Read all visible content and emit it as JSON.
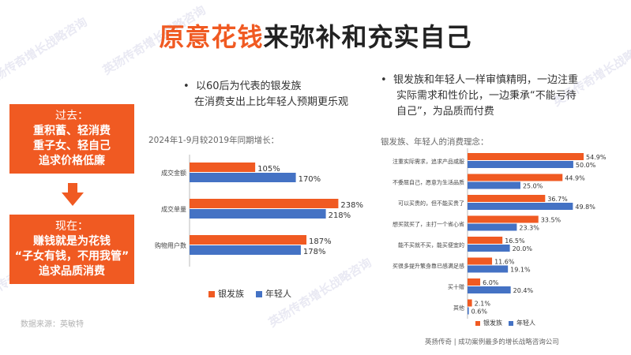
{
  "title_highlight": "原意花钱",
  "title_rest": "来弥补和充实自己",
  "left_bullet": [
    "以60后为代表的银发族",
    "在消费支出上比年轻人预期更乐观"
  ],
  "right_bullet": [
    "银发族和年轻人一样审慎精明，一边注重",
    "实际需求和性价比，一边秉承“不能亏待",
    "自己”，为品质而付费"
  ],
  "past_box": {
    "head": "过去：",
    "lines": [
      "重积蓄、轻消费",
      "重子女、轻自己",
      "追求价格低廉"
    ]
  },
  "now_box": {
    "head": "现在：",
    "lines": [
      "赚钱就是为花钱",
      "“子女有钱，不用我管”",
      "追求品质消费"
    ]
  },
  "source": "数据来源：英敏特",
  "footer": "英扬传奇 | 成功案例最多的增长战略咨询公司",
  "watermark": "英扬传奇增长战略咨询",
  "colors": {
    "accent": "#f05a22",
    "silver": "#f05a22",
    "young": "#4472c4"
  },
  "chart_data": [
    {
      "type": "bar",
      "orientation": "horizontal",
      "title": "2024年1-9月较2019年同期增长：",
      "categories": [
        "成交金额",
        "成交单量",
        "购物用户数"
      ],
      "series": [
        {
          "name": "银发族",
          "values": [
            105,
            238,
            187
          ],
          "labels": [
            "105%",
            "238%",
            "187%"
          ]
        },
        {
          "name": "年轻人",
          "values": [
            170,
            218,
            178
          ],
          "labels": [
            "170%",
            "218%",
            "178%"
          ]
        }
      ],
      "xlim": [
        0,
        240
      ],
      "grid": false,
      "legend": "bottom"
    },
    {
      "type": "bar",
      "orientation": "horizontal",
      "title": "银发族、年轻人的消费理念：",
      "categories": [
        "注重实际需求，追求产品或服",
        "不委屈自己，愿意为生活品质",
        "可以买贵的，但不能买贵了",
        "想买就买了，主打一个省心省",
        "能不买就不买，能买便宜的",
        "买很多提升繁身靠已感满足感",
        "买十赠",
        "其他"
      ],
      "series": [
        {
          "name": "银发族",
          "values": [
            54.9,
            44.9,
            36.7,
            33.5,
            16.5,
            11.6,
            6.0,
            2.1
          ],
          "labels": [
            "54.9%",
            "44.9%",
            "36.7%",
            "33.5%",
            "16.5%",
            "11.6%",
            "6.0%",
            "2.1%"
          ]
        },
        {
          "name": "年轻人",
          "values": [
            50.0,
            25.0,
            49.8,
            23.3,
            20.0,
            19.1,
            20.4,
            0.6
          ],
          "labels": [
            "50.0%",
            "25.0%",
            "49.8%",
            "23.3%",
            "20.0%",
            "19.1%",
            "20.4%",
            "0.6%"
          ]
        }
      ],
      "xlim": [
        0,
        56
      ],
      "grid": false,
      "legend": "bottom"
    }
  ]
}
